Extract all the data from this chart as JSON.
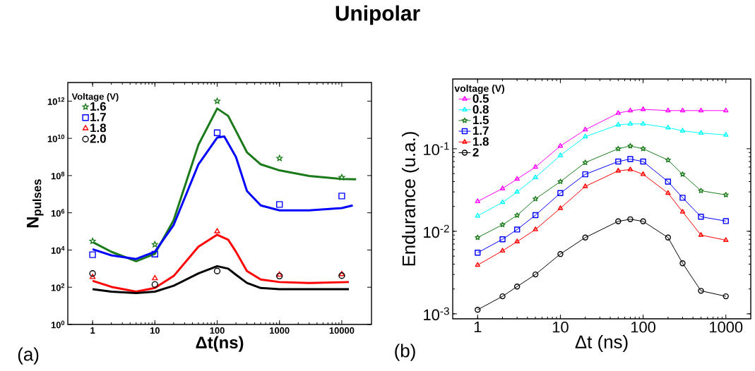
{
  "chart_data": [
    {
      "type": "scatter",
      "title": "Unipolar",
      "xlabel": "Δt(ns)",
      "ylabel": "N$_{pulses}$",
      "legend_title": "Voltage (V)",
      "annotations": [
        "(a)"
      ],
      "log": "xy",
      "legend": "top left",
      "grid": false,
      "xlim": [
        0.4,
        30000
      ],
      "xticks": [
        1,
        10,
        100,
        1000,
        10000
      ],
      "ylim": [
        1,
        10000000000000.0
      ],
      "yticks": [
        {
          "value": 1,
          "label": "10$^{0}$"
        },
        {
          "value": 100,
          "label": "10$^{2}$"
        },
        {
          "value": 10000,
          "label": "10$^{4}$"
        },
        {
          "value": 1000000,
          "label": "10$^{6}$"
        },
        {
          "value": 100000000,
          "label": "10$^{8}$"
        },
        {
          "value": 10000000000,
          "label": "10$^{10}$"
        },
        {
          "value": 1000000000000,
          "label": "10$^{12}$"
        }
      ],
      "series": [
        {
          "type": "line",
          "color": "#1a7a1a",
          "x": [
            1,
            2,
            5,
            10,
            20,
            50,
            100,
            150,
            200,
            300,
            500,
            1000,
            3000,
            10000,
            17000
          ],
          "values": [
            27000,
            8000,
            2500,
            6300,
            400000,
            4500000000.0,
            400000000000.0,
            160000000000.0,
            25000000000.0,
            1800000000.0,
            400000000.0,
            190000000.0,
            95000000.0,
            66000000.0,
            63000000.0
          ]
        },
        {
          "type": "line",
          "color": "#0000ff",
          "x": [
            1,
            2,
            5,
            10,
            20,
            50,
            100,
            130,
            200,
            300,
            500,
            1000,
            3000,
            10000,
            15000
          ],
          "values": [
            11000,
            5200,
            3300,
            8100,
            220000,
            400000000.0,
            11000000000.0,
            12600000000.0,
            1000000000.0,
            15000000.0,
            2500000.0,
            1350000.0,
            1350000.0,
            1800000.0,
            2500000.0
          ]
        },
        {
          "type": "line",
          "color": "#ff0000",
          "x": [
            1,
            2,
            5,
            10,
            20,
            50,
            100,
            150,
            200,
            300,
            500,
            1000,
            3000,
            13000
          ],
          "values": [
            220,
            105,
            58,
            91,
            400,
            15000,
            66000,
            36000,
            8100,
            740,
            260,
            190,
            170,
            190
          ]
        },
        {
          "type": "line",
          "color": "#000000",
          "x": [
            1,
            2,
            5,
            10,
            20,
            50,
            100,
            150,
            200,
            300,
            500,
            1000,
            13000
          ],
          "values": [
            78,
            58,
            49,
            58,
            120,
            550,
            1350,
            1000,
            470,
            170,
            91,
            78,
            78
          ]
        },
        {
          "type": "scatter",
          "name": "1.6",
          "color": "#1a7a1a",
          "marker": "star",
          "x": [
            1,
            10,
            100,
            1000,
            10000
          ],
          "values": [
            30000,
            20000,
            1000000000000.0,
            850000000.0,
            80000000.0
          ]
        },
        {
          "type": "scatter",
          "name": "1.7",
          "color": "#0000ff",
          "marker": "square",
          "x": [
            1,
            10,
            100,
            1000,
            10000
          ],
          "values": [
            5600,
            6000,
            20000000000.0,
            2800000.0,
            8000000.0
          ]
        },
        {
          "type": "scatter",
          "name": "1.8",
          "color": "#ff0000",
          "marker": "triangle",
          "x": [
            1,
            10,
            100,
            1000,
            10000
          ],
          "values": [
            350,
            300,
            100000,
            470,
            500
          ]
        },
        {
          "type": "scatter",
          "name": "2.0",
          "color": "#000000",
          "marker": "circle",
          "x": [
            1,
            10,
            100,
            1000,
            10000
          ],
          "values": [
            550,
            140,
            740,
            400,
            420
          ]
        }
      ]
    },
    {
      "type": "line",
      "xlabel": "Δt (ns)",
      "ylabel": "Endurance (u.a.)",
      "legend_title": "voltage (V)",
      "annotations": [
        "(b)"
      ],
      "log": "xy",
      "legend": "top left",
      "grid": false,
      "xlim": [
        0.5,
        2000
      ],
      "xticks": [
        1,
        10,
        100,
        1000
      ],
      "ylim": [
        0.00087,
        0.7
      ],
      "yticks": [
        {
          "value": 0.001,
          "label": "10$^{-3}$"
        },
        {
          "value": 0.01,
          "label": "10$^{-2}$"
        },
        {
          "value": 0.1,
          "label": "10$^{-1}$"
        }
      ],
      "x": [
        1,
        2,
        3,
        5,
        10,
        20,
        50,
        70,
        100,
        200,
        300,
        500,
        1000
      ],
      "series": [
        {
          "name": "0.5",
          "color": "#ff00ff",
          "marker": "triangle",
          "values": [
            0.023,
            0.033,
            0.043,
            0.06,
            0.108,
            0.17,
            0.27,
            0.29,
            0.3,
            0.29,
            0.29,
            0.29,
            0.29
          ]
        },
        {
          "name": "0.8",
          "color": "#00ffff",
          "marker": "triangle",
          "values": [
            0.0154,
            0.0224,
            0.03,
            0.045,
            0.083,
            0.14,
            0.195,
            0.2,
            0.2,
            0.18,
            0.165,
            0.155,
            0.147
          ]
        },
        {
          "name": "1.5",
          "color": "#1a7a1a",
          "marker": "star",
          "values": [
            0.0084,
            0.012,
            0.0156,
            0.0247,
            0.04,
            0.068,
            0.1,
            0.108,
            0.1,
            0.073,
            0.049,
            0.031,
            0.0276
          ]
        },
        {
          "name": "1.7",
          "color": "#0000ff",
          "marker": "square",
          "values": [
            0.0055,
            0.008,
            0.0105,
            0.0157,
            0.029,
            0.049,
            0.07,
            0.075,
            0.07,
            0.04,
            0.0255,
            0.015,
            0.0133
          ]
        },
        {
          "name": "1.8",
          "color": "#ff0000",
          "marker": "triangle",
          "values": [
            0.0039,
            0.0058,
            0.0075,
            0.0105,
            0.019,
            0.035,
            0.054,
            0.056,
            0.049,
            0.029,
            0.0172,
            0.009,
            0.0078
          ]
        },
        {
          "name": "2",
          "color": "#000000",
          "marker": "circle",
          "values": [
            0.00112,
            0.00163,
            0.00214,
            0.003,
            0.0053,
            0.0084,
            0.0132,
            0.014,
            0.0132,
            0.0084,
            0.0041,
            0.0019,
            0.00163
          ]
        }
      ]
    }
  ]
}
